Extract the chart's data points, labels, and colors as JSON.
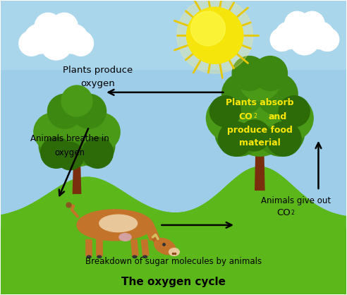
{
  "title": "The oxygen cycle",
  "title_fontsize": 11,
  "title_fontweight": "bold",
  "sky_color": "#9dcde8",
  "grass_color": "#5cb81a",
  "grass_dark": "#4aaa10",
  "sun_color": "#F5E50A",
  "sun_outer": "#E8C800",
  "cloud_color": "#ffffff",
  "tree_trunk_color": "#7B2E0E",
  "tree_foliage_color": "#4a9a18",
  "tree_foliage_mid": "#3d8810",
  "tree_foliage_dark": "#2d6a08",
  "cow_body_color": "#c4732a",
  "cow_light_color": "#e8c89a",
  "cow_pink": "#d4a0a0",
  "label_plants_produce": "Plants produce\noxygen",
  "label_plants_absorb_line1": "Plants absorb",
  "label_plants_absorb_line2": "CO",
  "label_plants_absorb_line2b": " and",
  "label_plants_absorb_line3": "produce food",
  "label_plants_absorb_line4": "material",
  "label_animals_breathe_line1": "Animals breathe in",
  "label_animals_breathe_line2": "oxygen",
  "label_animals_give_line1": "Animals give out",
  "label_animals_give_line2": "CO",
  "label_breakdown": "Breakdown of sugar molecules by animals",
  "label_color_black": "#000000",
  "label_color_yellow": "#FFE800",
  "background_color": "#ffffff",
  "border_color": "#444444",
  "fig_width": 4.92,
  "fig_height": 4.18,
  "dpi": 100
}
